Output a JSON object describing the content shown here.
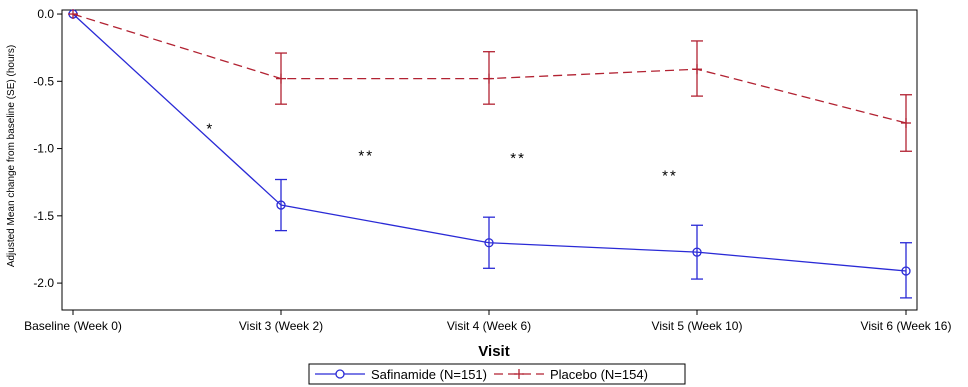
{
  "chart_data": {
    "type": "line",
    "title": "",
    "xlabel": "Visit",
    "ylabel": "Adjusted Mean change from baseline (SE) (hours)",
    "categories": [
      "Baseline (Week 0)",
      "Visit 3 (Week 2)",
      "Visit 4 (Week 6)",
      "Visit 5 (Week 10)",
      "Visit 6 (Week 16)"
    ],
    "ylim": [
      -2.2,
      0.03
    ],
    "yticks": [
      0.0,
      -0.5,
      -1.0,
      -1.5,
      -2.0
    ],
    "ytick_labels": [
      "0.0",
      "-0.5",
      "-1.0",
      "-1.5",
      "-2.0"
    ],
    "grid": false,
    "legend_position": "bottom",
    "series": [
      {
        "name": "Safinamide (N=151)",
        "color": "#2a2ad6",
        "line_style": "solid",
        "marker": "circle",
        "values": [
          0.0,
          -1.42,
          -1.7,
          -1.77,
          -1.91
        ],
        "error_low": [
          0.0,
          -1.61,
          -1.89,
          -1.97,
          -2.11
        ],
        "error_high": [
          0.0,
          -1.23,
          -1.51,
          -1.57,
          -1.7
        ]
      },
      {
        "name": "Placebo (N=154)",
        "color": "#b22232",
        "line_style": "dashed",
        "marker": "plus",
        "values": [
          0.0,
          -0.48,
          -0.48,
          -0.41,
          -0.81
        ],
        "error_low": [
          0.0,
          -0.67,
          -0.67,
          -0.61,
          -1.02
        ],
        "error_high": [
          0.0,
          -0.29,
          -0.28,
          -0.2,
          -0.6
        ]
      }
    ],
    "annotations": [
      {
        "text": "*",
        "x_pos": 0.66,
        "y": -0.85
      },
      {
        "text": "**",
        "x_pos": 1.41,
        "y": -1.05
      },
      {
        "text": "**",
        "x_pos": 2.14,
        "y": -1.07
      },
      {
        "text": "**",
        "x_pos": 2.87,
        "y": -1.2
      }
    ]
  }
}
